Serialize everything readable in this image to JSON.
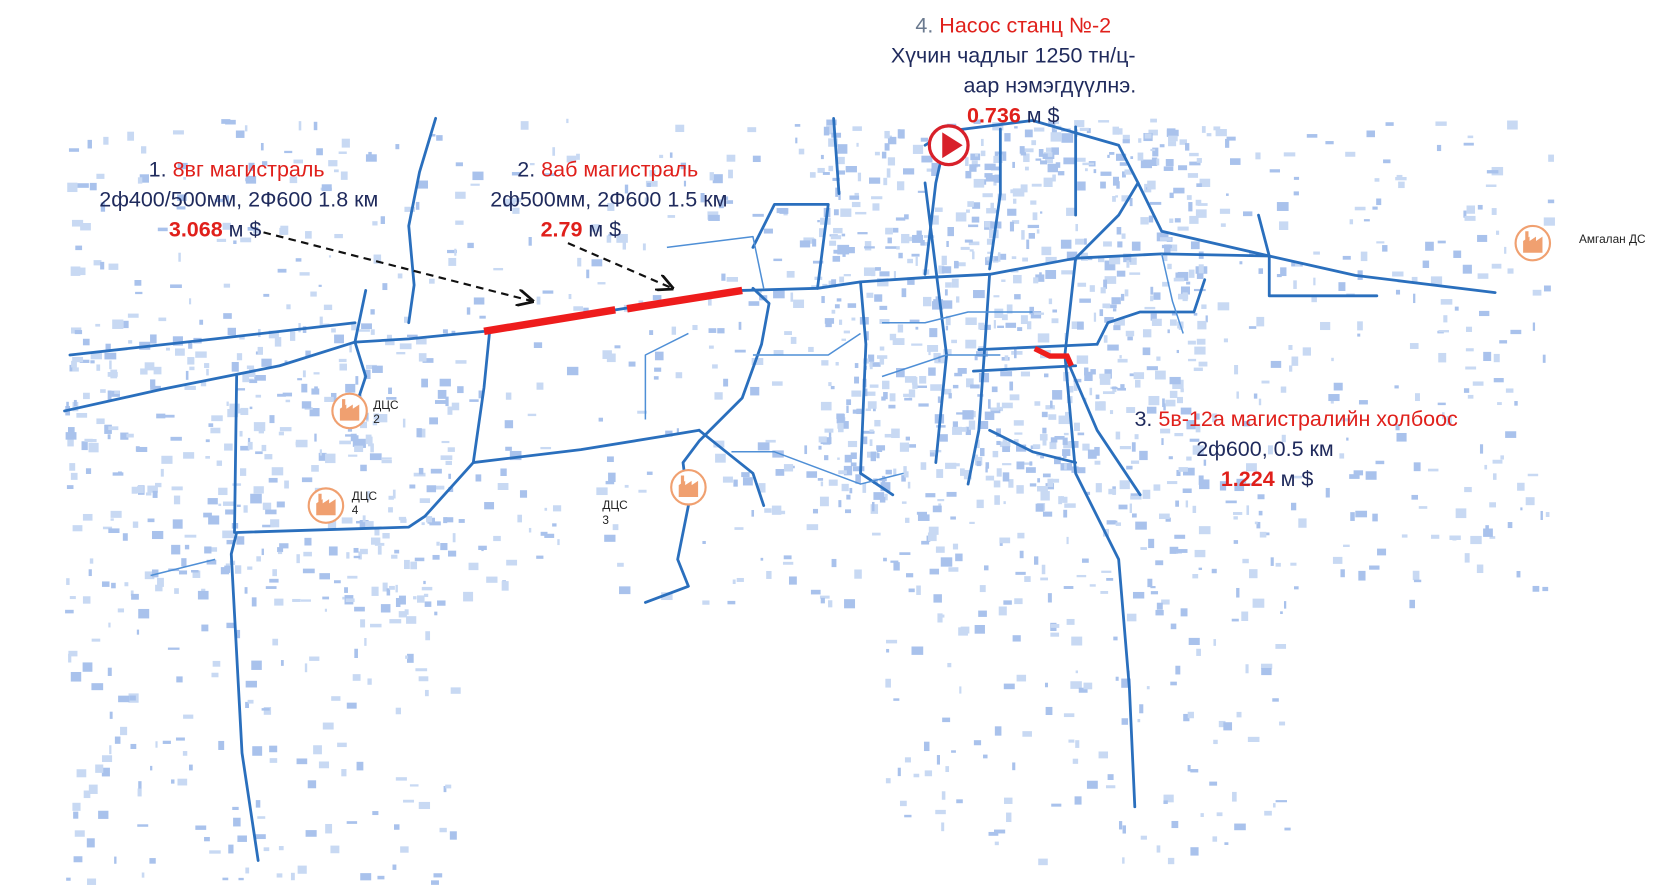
{
  "projects": [
    {
      "number": "1.",
      "name": "8вг магистраль",
      "spec": "2ф400/500мм, 2Ф600 1.8 км",
      "cost": "3.068",
      "unit": "м $"
    },
    {
      "number": "2.",
      "name": "8аб магистраль",
      "spec": "2ф500мм, 2Ф600 1.5 км",
      "cost": "2.79",
      "unit": "м $"
    },
    {
      "number": "3.",
      "name": "5в-12а магистралийн холбоос",
      "spec": "2ф600, 0.5 км",
      "cost": "1.224",
      "unit": "м $"
    },
    {
      "number": "4.",
      "name": "Насос станц №-2",
      "spec_lines": [
        "Хүчин чадлыг 1250 тн/ц-",
        "аар нэмэгдүүлнэ."
      ],
      "cost": "0.736",
      "unit": "м $"
    }
  ],
  "plants": [
    {
      "label": "ДЦС",
      "number": "2"
    },
    {
      "label": "ДЦС",
      "number": "4"
    },
    {
      "label": "ДЦС",
      "number": "3"
    },
    {
      "label": "Амгалан ДС"
    }
  ]
}
